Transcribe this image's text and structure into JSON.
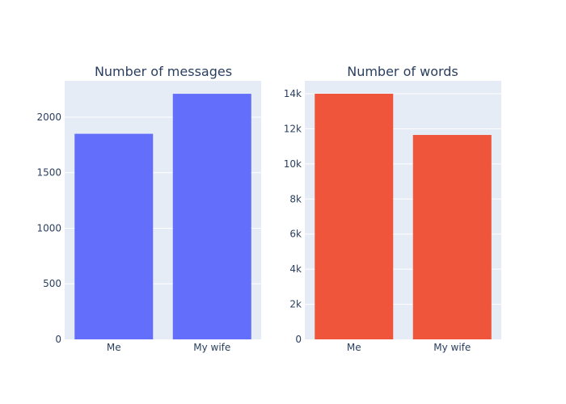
{
  "chart_data": [
    {
      "type": "bar",
      "title": "Number of messages",
      "categories": [
        "Me",
        "My wife"
      ],
      "values": [
        1850,
        2210
      ],
      "ylim": [
        0,
        2327
      ],
      "yticks": [
        0,
        500,
        1000,
        1500,
        2000
      ],
      "ytick_labels": [
        "0",
        "500",
        "1000",
        "1500",
        "2000"
      ],
      "color": "#636efa",
      "grid": true,
      "xlabel": "",
      "ylabel": ""
    },
    {
      "type": "bar",
      "title": "Number of words",
      "categories": [
        "Me",
        "My wife"
      ],
      "values": [
        14000,
        11650
      ],
      "ylim": [
        0,
        14737
      ],
      "yticks": [
        0,
        2000,
        4000,
        6000,
        8000,
        10000,
        12000,
        14000
      ],
      "ytick_labels": [
        "0",
        "2k",
        "4k",
        "6k",
        "8k",
        "10k",
        "12k",
        "14k"
      ],
      "color": "#ef553b",
      "grid": true,
      "xlabel": "",
      "ylabel": ""
    }
  ],
  "style": {
    "plot_background": "#e5ecf6",
    "grid_color": "#ffffff",
    "text_color": "#2a3f5f"
  }
}
